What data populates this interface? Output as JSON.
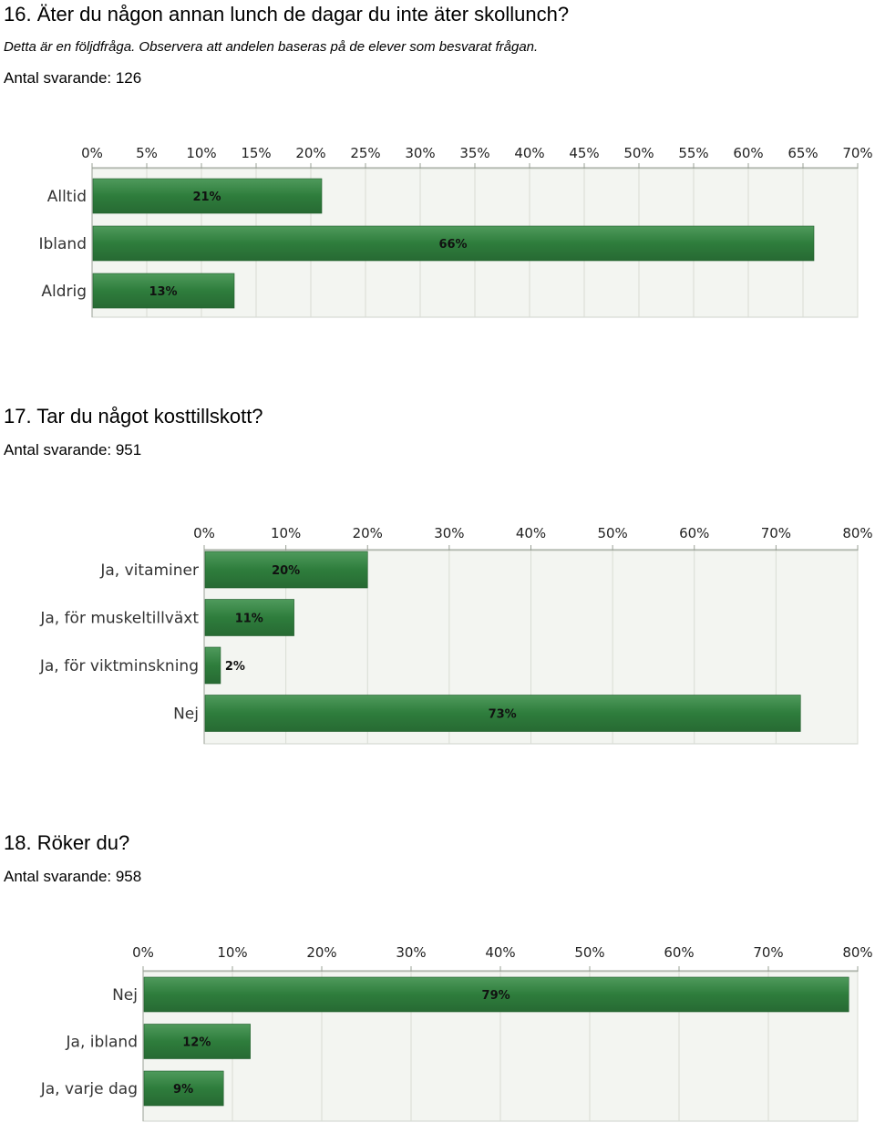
{
  "questions": [
    {
      "title": "16. Äter du någon annan lunch de dagar du inte äter skollunch?",
      "note": "Detta är en följdfråga. Observera att andelen baseras på de elever som besvarat frågan.",
      "count_label": "Antal svarande: 126"
    },
    {
      "title": "17. Tar du något kosttillskott?",
      "count_label": "Antal svarande: 951"
    },
    {
      "title": "18. Röker du?",
      "count_label": "Antal svarande: 958"
    }
  ],
  "colors": {
    "bar": "#2e7d3c",
    "bar_light": "#4f9a5c",
    "plot_bg": "#f3f5f1",
    "grid": "#d8dcd4"
  },
  "chart_data": [
    {
      "type": "bar",
      "orientation": "horizontal",
      "categories": [
        "Alltid",
        "Ibland",
        "Aldrig"
      ],
      "values": [
        21,
        66,
        13
      ],
      "value_labels": [
        "21%",
        "66%",
        "13%"
      ],
      "xlim": [
        0,
        70
      ],
      "xticks": [
        0,
        5,
        10,
        15,
        20,
        25,
        30,
        35,
        40,
        45,
        50,
        55,
        60,
        65,
        70
      ],
      "tick_labels": [
        "0%",
        "5%",
        "10%",
        "15%",
        "20%",
        "25%",
        "30%",
        "35%",
        "40%",
        "45%",
        "50%",
        "55%",
        "60%",
        "65%",
        "70%"
      ],
      "grid": true
    },
    {
      "type": "bar",
      "orientation": "horizontal",
      "categories": [
        "Ja, vitaminer",
        "Ja, för muskeltillväxt",
        "Ja, för viktminskning",
        "Nej"
      ],
      "values": [
        20,
        11,
        2,
        73
      ],
      "value_labels": [
        "20%",
        "11%",
        "2%",
        "73%"
      ],
      "xlim": [
        0,
        80
      ],
      "xticks": [
        0,
        10,
        20,
        30,
        40,
        50,
        60,
        70,
        80
      ],
      "tick_labels": [
        "0%",
        "10%",
        "20%",
        "30%",
        "40%",
        "50%",
        "60%",
        "70%",
        "80%"
      ],
      "grid": true
    },
    {
      "type": "bar",
      "orientation": "horizontal",
      "categories": [
        "Nej",
        "Ja, ibland",
        "Ja, varje dag"
      ],
      "values": [
        79,
        12,
        9
      ],
      "value_labels": [
        "79%",
        "12%",
        "9%"
      ],
      "xlim": [
        0,
        80
      ],
      "xticks": [
        0,
        10,
        20,
        30,
        40,
        50,
        60,
        70,
        80
      ],
      "tick_labels": [
        "0%",
        "10%",
        "20%",
        "30%",
        "40%",
        "50%",
        "60%",
        "70%",
        "80%"
      ],
      "grid": true
    }
  ]
}
